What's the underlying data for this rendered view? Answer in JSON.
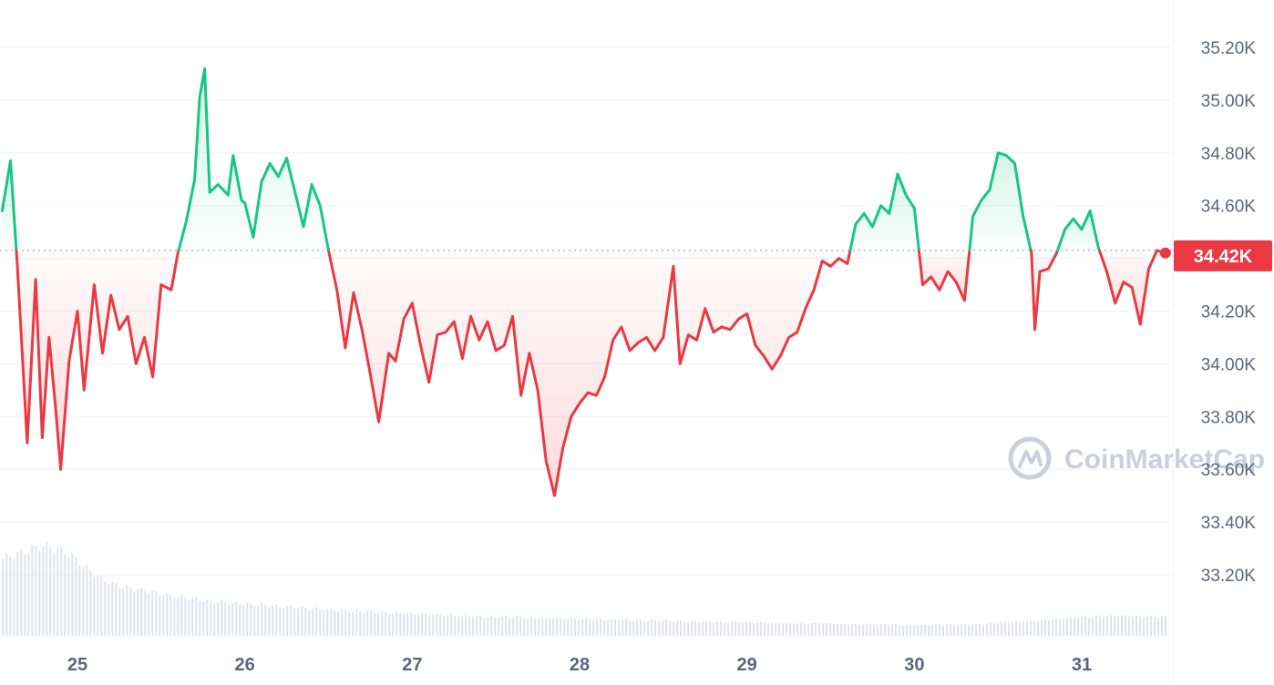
{
  "chart_data": {
    "type": "line",
    "x_unit": "day of month",
    "x_ticks": [
      "25",
      "26",
      "27",
      "28",
      "29",
      "30",
      "31"
    ],
    "y_ticks": [
      "35.20K",
      "35.00K",
      "34.80K",
      "34.60K",
      "34.40K",
      "34.20K",
      "34.00K",
      "33.80K",
      "33.60K",
      "33.40K",
      "33.20K"
    ],
    "ylim": [
      33000,
      35300
    ],
    "xlim": [
      24.55,
      31.55
    ],
    "baseline": 34430,
    "current_price_label": "34.42K",
    "watermark": "CoinMarketCap",
    "grid": true,
    "colors": {
      "up": "#16c784",
      "down": "#ea3943",
      "grid": "#eff2f5",
      "axis_text": "#58667e"
    },
    "series": [
      {
        "values": [
          [
            24.55,
            34580
          ],
          [
            24.6,
            34770
          ],
          [
            24.64,
            34380
          ],
          [
            24.7,
            33700
          ],
          [
            24.75,
            34320
          ],
          [
            24.79,
            33720
          ],
          [
            24.83,
            34100
          ],
          [
            24.87,
            33830
          ],
          [
            24.9,
            33600
          ],
          [
            24.95,
            34010
          ],
          [
            25.0,
            34200
          ],
          [
            25.04,
            33900
          ],
          [
            25.1,
            34300
          ],
          [
            25.15,
            34040
          ],
          [
            25.2,
            34260
          ],
          [
            25.25,
            34130
          ],
          [
            25.3,
            34180
          ],
          [
            25.35,
            34000
          ],
          [
            25.4,
            34100
          ],
          [
            25.45,
            33950
          ],
          [
            25.5,
            34300
          ],
          [
            25.56,
            34280
          ],
          [
            25.6,
            34420
          ],
          [
            25.65,
            34540
          ],
          [
            25.7,
            34700
          ],
          [
            25.73,
            35010
          ],
          [
            25.76,
            35120
          ],
          [
            25.79,
            34650
          ],
          [
            25.84,
            34680
          ],
          [
            25.9,
            34640
          ],
          [
            25.93,
            34790
          ],
          [
            25.98,
            34620
          ],
          [
            26.0,
            34610
          ],
          [
            26.05,
            34480
          ],
          [
            26.1,
            34690
          ],
          [
            26.15,
            34760
          ],
          [
            26.2,
            34710
          ],
          [
            26.25,
            34780
          ],
          [
            26.3,
            34650
          ],
          [
            26.35,
            34520
          ],
          [
            26.4,
            34680
          ],
          [
            26.45,
            34600
          ],
          [
            26.5,
            34430
          ],
          [
            26.55,
            34280
          ],
          [
            26.6,
            34060
          ],
          [
            26.65,
            34270
          ],
          [
            26.7,
            34130
          ],
          [
            26.75,
            33960
          ],
          [
            26.8,
            33780
          ],
          [
            26.86,
            34040
          ],
          [
            26.9,
            34010
          ],
          [
            26.95,
            34170
          ],
          [
            27.0,
            34230
          ],
          [
            27.05,
            34070
          ],
          [
            27.1,
            33930
          ],
          [
            27.15,
            34110
          ],
          [
            27.2,
            34120
          ],
          [
            27.25,
            34160
          ],
          [
            27.3,
            34020
          ],
          [
            27.35,
            34180
          ],
          [
            27.4,
            34090
          ],
          [
            27.45,
            34160
          ],
          [
            27.5,
            34050
          ],
          [
            27.55,
            34070
          ],
          [
            27.6,
            34180
          ],
          [
            27.65,
            33880
          ],
          [
            27.7,
            34040
          ],
          [
            27.75,
            33900
          ],
          [
            27.8,
            33630
          ],
          [
            27.85,
            33500
          ],
          [
            27.9,
            33680
          ],
          [
            27.95,
            33800
          ],
          [
            28.0,
            33850
          ],
          [
            28.05,
            33890
          ],
          [
            28.1,
            33880
          ],
          [
            28.15,
            33950
          ],
          [
            28.2,
            34090
          ],
          [
            28.25,
            34140
          ],
          [
            28.3,
            34050
          ],
          [
            28.35,
            34080
          ],
          [
            28.4,
            34100
          ],
          [
            28.45,
            34050
          ],
          [
            28.5,
            34100
          ],
          [
            28.56,
            34370
          ],
          [
            28.6,
            34000
          ],
          [
            28.65,
            34110
          ],
          [
            28.7,
            34090
          ],
          [
            28.75,
            34210
          ],
          [
            28.8,
            34120
          ],
          [
            28.85,
            34140
          ],
          [
            28.9,
            34130
          ],
          [
            28.95,
            34170
          ],
          [
            29.0,
            34190
          ],
          [
            29.05,
            34070
          ],
          [
            29.1,
            34030
          ],
          [
            29.15,
            33980
          ],
          [
            29.2,
            34030
          ],
          [
            29.25,
            34100
          ],
          [
            29.3,
            34120
          ],
          [
            29.35,
            34210
          ],
          [
            29.4,
            34280
          ],
          [
            29.45,
            34390
          ],
          [
            29.5,
            34370
          ],
          [
            29.55,
            34400
          ],
          [
            29.6,
            34380
          ],
          [
            29.65,
            34530
          ],
          [
            29.7,
            34570
          ],
          [
            29.75,
            34520
          ],
          [
            29.8,
            34600
          ],
          [
            29.85,
            34570
          ],
          [
            29.9,
            34720
          ],
          [
            29.95,
            34640
          ],
          [
            30.0,
            34590
          ],
          [
            30.05,
            34300
          ],
          [
            30.1,
            34330
          ],
          [
            30.15,
            34280
          ],
          [
            30.2,
            34350
          ],
          [
            30.25,
            34310
          ],
          [
            30.3,
            34240
          ],
          [
            30.35,
            34560
          ],
          [
            30.4,
            34620
          ],
          [
            30.45,
            34660
          ],
          [
            30.5,
            34800
          ],
          [
            30.55,
            34790
          ],
          [
            30.6,
            34760
          ],
          [
            30.65,
            34560
          ],
          [
            30.7,
            34420
          ],
          [
            30.72,
            34130
          ],
          [
            30.75,
            34350
          ],
          [
            30.8,
            34360
          ],
          [
            30.85,
            34420
          ],
          [
            30.9,
            34510
          ],
          [
            30.95,
            34550
          ],
          [
            31.0,
            34510
          ],
          [
            31.05,
            34580
          ],
          [
            31.1,
            34440
          ],
          [
            31.15,
            34350
          ],
          [
            31.2,
            34230
          ],
          [
            31.25,
            34310
          ],
          [
            31.3,
            34290
          ],
          [
            31.35,
            34150
          ],
          [
            31.4,
            34360
          ],
          [
            31.45,
            34430
          ],
          [
            31.5,
            34420
          ]
        ]
      }
    ],
    "volume_relative": [
      0.86,
      0.9,
      0.95,
      1.0,
      0.97,
      0.92,
      0.8,
      0.68,
      0.6,
      0.55,
      0.52,
      0.5,
      0.47,
      0.44,
      0.42,
      0.4,
      0.38,
      0.37,
      0.36,
      0.35,
      0.34,
      0.33,
      0.32,
      0.31,
      0.3,
      0.29,
      0.28,
      0.27,
      0.27,
      0.26,
      0.25,
      0.25,
      0.24,
      0.24,
      0.23,
      0.22,
      0.22,
      0.21,
      0.21,
      0.21,
      0.2,
      0.2,
      0.2,
      0.19,
      0.19,
      0.19,
      0.18,
      0.18,
      0.18,
      0.17,
      0.17,
      0.17,
      0.16,
      0.16,
      0.16,
      0.15,
      0.15,
      0.15,
      0.15,
      0.14,
      0.14,
      0.14,
      0.14,
      0.14,
      0.13,
      0.13,
      0.13,
      0.13,
      0.13,
      0.12,
      0.12,
      0.12,
      0.12,
      0.12,
      0.13,
      0.13,
      0.14,
      0.15,
      0.16,
      0.17,
      0.18,
      0.19,
      0.2,
      0.21,
      0.22,
      0.22,
      0.22,
      0.21,
      0.21,
      0.21
    ]
  }
}
